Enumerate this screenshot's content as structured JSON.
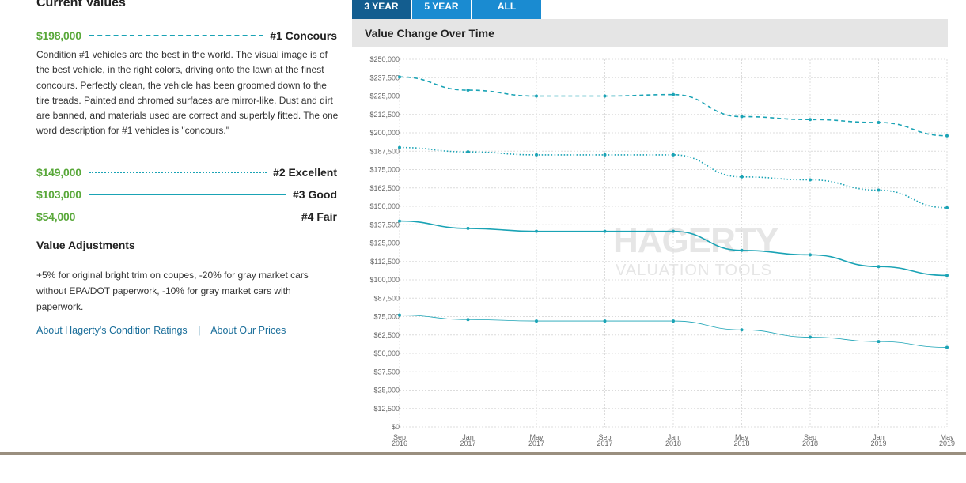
{
  "left_panel": {
    "heading": "Current Values",
    "values": [
      {
        "price": "$198,000",
        "condition": "#1 Concours",
        "style": "dashed"
      },
      {
        "price": "$149,000",
        "condition": "#2 Excellent",
        "style": "dotted"
      },
      {
        "price": "$103,000",
        "condition": "#3 Good",
        "style": "solid"
      },
      {
        "price": "$54,000",
        "condition": "#4 Fair",
        "style": "thin"
      }
    ],
    "concours_description": "Condition #1 vehicles are the best in the world. The visual image is of the best vehicle, in the right colors, driving onto the lawn at the finest concours. Perfectly clean, the vehicle has been groomed down to the tire treads. Painted and chromed surfaces are mirror-like. Dust and dirt are banned, and materials used are correct and superbly fitted. The one word description for #1 vehicles is \"concours.\"",
    "adjustments_heading": "Value Adjustments",
    "adjustments_text": "+5% for original bright trim on coupes, -20% for gray market cars without EPA/DOT paperwork, -10% for gray market cars with paperwork.",
    "link_condition_ratings": "About Hagerty's Condition Ratings",
    "link_separator": "|",
    "link_prices": "About Our Prices"
  },
  "tabs": [
    {
      "label": "3 YEAR",
      "active": true
    },
    {
      "label": "5 YEAR",
      "active": false
    },
    {
      "label": "ALL",
      "active": false
    }
  ],
  "watermark": {
    "brand": "HAGERTY",
    "tagline": "VALUATION TOOLS"
  },
  "colors": {
    "accent": "#1aa3b5",
    "price_green": "#59a83a",
    "tab_blue": "#1a8bd1",
    "tab_active": "#135d8f",
    "link": "#1a6e9a"
  },
  "chart_data": {
    "type": "line",
    "title": "Value Change Over Time",
    "x": [
      "Sep 2016",
      "Jan 2017",
      "May 2017",
      "Sep 2017",
      "Jan 2018",
      "May 2018",
      "Sep 2018",
      "Jan 2019",
      "May 2019"
    ],
    "x_tick_labels": [
      [
        "Sep",
        "2016"
      ],
      [
        "Jan",
        "2017"
      ],
      [
        "May",
        "2017"
      ],
      [
        "Sep",
        "2017"
      ],
      [
        "Jan",
        "2018"
      ],
      [
        "May",
        "2018"
      ],
      [
        "Sep",
        "2018"
      ],
      [
        "Jan",
        "2019"
      ],
      [
        "May",
        "2019"
      ]
    ],
    "y_ticks": [
      "$0",
      "$12,500",
      "$25,000",
      "$37,500",
      "$50,000",
      "$62,500",
      "$75,000",
      "$87,500",
      "$100,000",
      "$112,500",
      "$125,000",
      "$137,500",
      "$150,000",
      "$162,500",
      "$175,000",
      "$187,500",
      "$200,000",
      "$212,500",
      "$225,000",
      "$237,500",
      "$250,000"
    ],
    "ylim": [
      0,
      250000
    ],
    "grid": true,
    "series": [
      {
        "name": "#1 Concours",
        "style": "dashed",
        "values": [
          238000,
          229000,
          225000,
          225000,
          226000,
          211000,
          209000,
          207000,
          198000
        ]
      },
      {
        "name": "#2 Excellent",
        "style": "dotted",
        "values": [
          190000,
          187000,
          185000,
          185000,
          185000,
          170000,
          168000,
          161000,
          149000
        ]
      },
      {
        "name": "#3 Good",
        "style": "solid",
        "values": [
          140000,
          135000,
          133000,
          133000,
          133000,
          120000,
          117000,
          109000,
          103000
        ]
      },
      {
        "name": "#4 Fair",
        "style": "thin",
        "values": [
          76000,
          73000,
          72000,
          72000,
          72000,
          66000,
          61000,
          58000,
          54000
        ]
      }
    ]
  }
}
